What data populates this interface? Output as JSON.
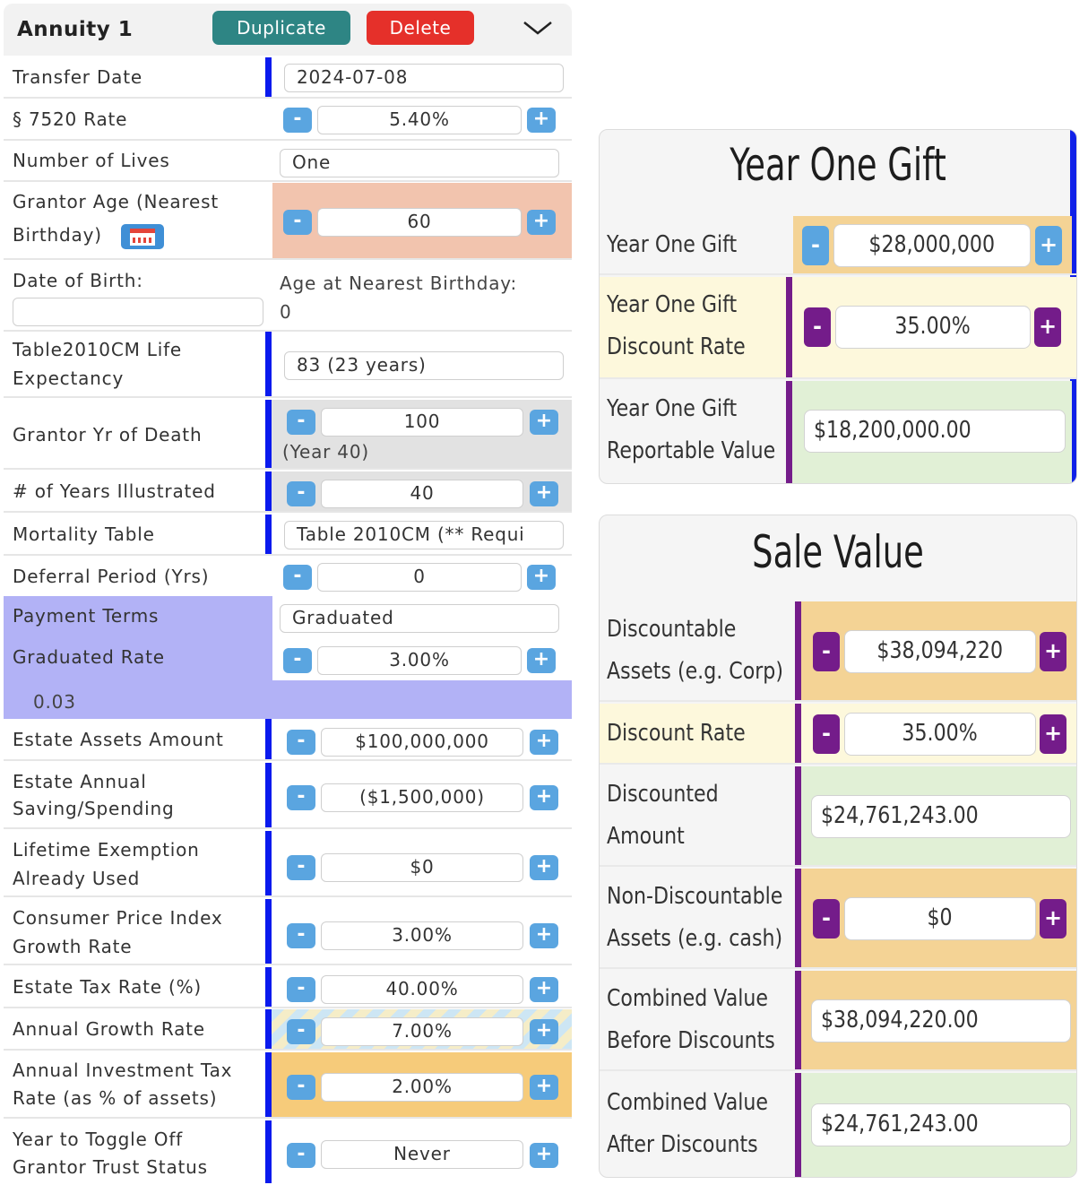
{
  "annuity": {
    "title": "Annuity 1",
    "duplicate_label": "Duplicate",
    "delete_label": "Delete",
    "plus": "+",
    "minus": "-",
    "fields": {
      "transfer_date": {
        "label": "Transfer Date",
        "value": "2024-07-08"
      },
      "rate_7520": {
        "label": "§ 7520 Rate",
        "value": "5.40%"
      },
      "number_of_lives": {
        "label": "Number of Lives",
        "value": "One"
      },
      "grantor_age": {
        "label_line1": "Grantor Age (Nearest",
        "label_line2": "Birthday)",
        "value": "60"
      },
      "date_of_birth": {
        "label": "Date of Birth:",
        "value": "",
        "age_label": "Age at Nearest Birthday:",
        "age_value": "0"
      },
      "life_expectancy": {
        "label_line1": "Table2010CM Life",
        "label_line2": "Expectancy",
        "value": "83 (23 years)"
      },
      "grantor_yr_death": {
        "label": "Grantor Yr of Death",
        "value": "100",
        "note": "(Year 40)"
      },
      "years_illustrated": {
        "label": "# of Years Illustrated",
        "value": "40"
      },
      "mortality_table": {
        "label": "Mortality Table",
        "value": "Table 2010CM (** Requi"
      },
      "deferral_period": {
        "label": "Deferral Period (Yrs)",
        "value": "0"
      },
      "payment_terms": {
        "label": "Payment Terms",
        "value": "Graduated"
      },
      "graduated_rate": {
        "label": "Graduated Rate",
        "value": "3.00%",
        "note": "0.03"
      },
      "estate_assets": {
        "label": "Estate Assets Amount",
        "value": "$100,000,000"
      },
      "estate_saving": {
        "label_line1": "Estate Annual",
        "label_line2": "Saving/Spending",
        "value": "($1,500,000)"
      },
      "lifetime_exemption": {
        "label_line1": "Lifetime Exemption",
        "label_line2": "Already Used",
        "value": "$0"
      },
      "cpi_growth": {
        "label_line1": "Consumer Price Index",
        "label_line2": "Growth Rate",
        "value": "3.00%"
      },
      "estate_tax_rate": {
        "label": "Estate Tax Rate (%)",
        "value": "40.00%"
      },
      "annual_growth": {
        "label": "Annual Growth Rate",
        "value": "7.00%"
      },
      "investment_tax": {
        "label_line1": "Annual Investment Tax",
        "label_line2": "Rate (as % of assets)",
        "value": "2.00%"
      },
      "toggle_off": {
        "label_line1": "Year to Toggle Off",
        "label_line2": "Grantor Trust Status",
        "value": "Never"
      }
    }
  },
  "year_one_gift": {
    "title": "Year One Gift",
    "gift": {
      "label": "Year One Gift",
      "value": "$28,000,000"
    },
    "discount_rate": {
      "label_line1": "Year One Gift",
      "label_line2": "Discount Rate",
      "value": "35.00%"
    },
    "reportable": {
      "label_line1": "Year One Gift",
      "label_line2": "Reportable Value",
      "value": "$18,200,000.00"
    }
  },
  "sale_value": {
    "title": "Sale Value",
    "discountable": {
      "label_line1": "Discountable",
      "label_line2": "Assets (e.g. Corp)",
      "value": "$38,094,220"
    },
    "discount_rate": {
      "label": "Discount Rate",
      "value": "35.00%"
    },
    "discounted_amount": {
      "label_line1": "Discounted",
      "label_line2": "Amount",
      "value": "$24,761,243.00"
    },
    "non_discountable": {
      "label_line1": "Non-Discountable",
      "label_line2": "Assets (e.g. cash)",
      "value": "$0"
    },
    "combined_before": {
      "label_line1": "Combined Value",
      "label_line2": "Before Discounts",
      "value": "$38,094,220.00"
    },
    "combined_after": {
      "label_line1": "Combined Value",
      "label_line2": "After Discounts",
      "value": "$24,761,243.00"
    }
  },
  "colors": {
    "duplicate": "#2e8584",
    "delete": "#e5302a",
    "stepper_blue": "#5aa5e0",
    "stepper_purple": "#741c8a",
    "rail_blue": "#0a1aee",
    "highlight_lavender": "#b2b2f6",
    "salmon": "#f2c4ae",
    "orange": "#f4d395"
  },
  "icons": {
    "collapse": "chevron-down-icon",
    "calendar": "calendar-icon"
  }
}
